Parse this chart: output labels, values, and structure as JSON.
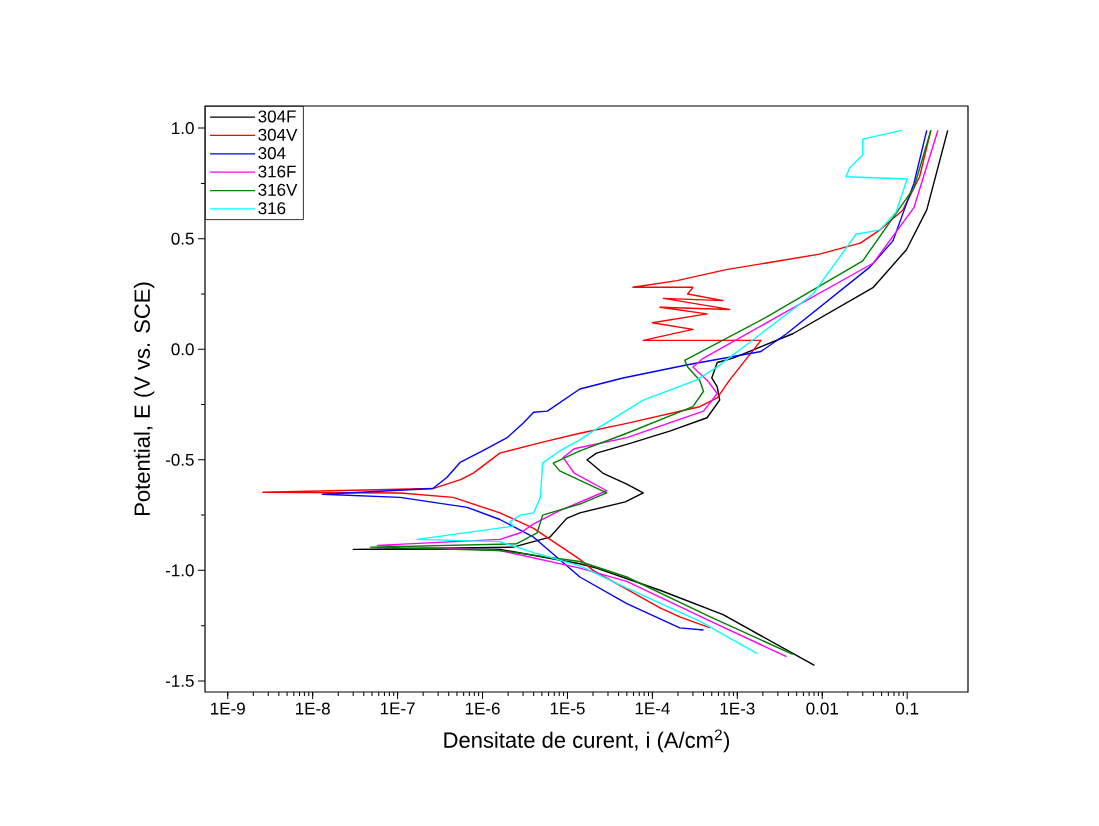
{
  "chart_data": {
    "type": "line",
    "xlabel": "Densitate de curent, i (A/cm$^{2}$)",
    "ylabel": "Potential, E (V vs. SCE)",
    "log": "x",
    "legend": "top left",
    "marker": "none",
    "xlim": [
      5.4e-10,
      0.52
    ],
    "ylim": [
      -1.55,
      1.1
    ],
    "xticks": [
      {
        "value": 1e-09,
        "label": "1E-9"
      },
      {
        "value": 1e-08,
        "label": "1E-8"
      },
      {
        "value": 1e-07,
        "label": "1E-7"
      },
      {
        "value": 1e-06,
        "label": "1E-6"
      },
      {
        "value": 1e-05,
        "label": "1E-5"
      },
      {
        "value": 0.0001,
        "label": "1E-4"
      },
      {
        "value": 0.001,
        "label": "1E-3"
      },
      {
        "value": 0.01,
        "label": "0.01"
      },
      {
        "value": 0.1,
        "label": "0.1"
      }
    ],
    "yticks": [
      {
        "value": -1.5,
        "label": "-1.5"
      },
      {
        "value": -1.0,
        "label": "-1.0"
      },
      {
        "value": -0.5,
        "label": "-0.5"
      },
      {
        "value": 0.0,
        "label": "0.0"
      },
      {
        "value": 0.5,
        "label": "0.5"
      },
      {
        "value": 1.0,
        "label": "1.0"
      }
    ],
    "series": [
      {
        "name": "304F",
        "color": "#000000",
        "x": [
          0.0081,
          0.00068,
          0.000123,
          2.2e-05,
          1.4e-05,
          1.6e-06,
          3e-08,
          2.3e-06,
          6.2e-06,
          9.8e-06,
          1.4e-05,
          4.8e-05,
          7.8e-05,
          5e-05,
          2.6e-05,
          1.7e-05,
          2.2e-05,
          5e-05,
          0.00016,
          0.00044,
          0.00062,
          0.00058,
          0.0005,
          0.00058,
          0.00089,
          0.0045,
          0.04,
          0.098,
          0.17,
          0.3
        ],
        "values": [
          -1.43,
          -1.2,
          -1.09,
          -0.99,
          -0.97,
          -0.905,
          -0.905,
          -0.895,
          -0.85,
          -0.765,
          -0.74,
          -0.69,
          -0.65,
          -0.61,
          -0.56,
          -0.5,
          -0.47,
          -0.43,
          -0.37,
          -0.31,
          -0.23,
          -0.17,
          -0.13,
          -0.06,
          -0.04,
          0.07,
          0.28,
          0.45,
          0.63,
          0.99
        ]
      },
      {
        "name": "304V",
        "color": "#ff0000",
        "x": [
          0.00048,
          0.00021,
          0.000123,
          2e-05,
          1.4e-05,
          4e-06,
          1.6e-06,
          4.5e-07,
          1.07e-07,
          2.6e-09,
          2.6e-07,
          5.5e-07,
          7.8e-07,
          1.6e-06,
          5.1e-06,
          1.4e-05,
          5e-05,
          0.00036,
          0.00058,
          0.00081,
          0.0019,
          7.8e-05,
          0.0003,
          0.0001,
          0.00044,
          0.000123,
          0.00081,
          0.000135,
          0.00068,
          0.00026,
          0.0003,
          5.9e-05,
          0.000195,
          0.00074,
          0.0022,
          0.0093,
          0.028,
          0.048,
          0.089,
          0.14,
          0.19
        ],
        "values": [
          -1.26,
          -1.21,
          -1.17,
          -1.0,
          -0.95,
          -0.81,
          -0.74,
          -0.67,
          -0.65,
          -0.647,
          -0.63,
          -0.59,
          -0.56,
          -0.47,
          -0.42,
          -0.38,
          -0.335,
          -0.26,
          -0.22,
          -0.14,
          0.04,
          0.04,
          0.09,
          0.12,
          0.16,
          0.19,
          0.18,
          0.23,
          0.22,
          0.25,
          0.28,
          0.28,
          0.31,
          0.36,
          0.39,
          0.43,
          0.48,
          0.54,
          0.63,
          0.78,
          0.99
        ]
      },
      {
        "name": "304",
        "color": "#0000ff",
        "x": [
          0.0004,
          0.00021,
          5e-05,
          1.4e-05,
          4e-06,
          1.6e-06,
          6.6e-07,
          1.07e-07,
          1.3e-08,
          2.6e-07,
          3.8e-07,
          5.5e-07,
          1e-06,
          1.95e-06,
          3e-06,
          4e-06,
          5.8e-06,
          1.4e-05,
          4.5e-05,
          0.00026,
          0.0019,
          0.0038,
          0.036,
          0.068,
          0.12,
          0.17
        ],
        "values": [
          -1.27,
          -1.26,
          -1.15,
          -1.03,
          -0.85,
          -0.77,
          -0.715,
          -0.67,
          -0.656,
          -0.63,
          -0.58,
          -0.51,
          -0.46,
          -0.4,
          -0.335,
          -0.285,
          -0.28,
          -0.18,
          -0.13,
          -0.07,
          -0.01,
          0.07,
          0.37,
          0.49,
          0.75,
          0.99
        ]
      },
      {
        "name": "316F",
        "color": "#ff00ff",
        "x": [
          0.0038,
          0.00048,
          5e-05,
          1.4e-05,
          1.6e-06,
          5.8e-08,
          1.6e-06,
          2.8e-06,
          4e-06,
          8.1e-06,
          2.9e-05,
          1.2e-05,
          8.9e-06,
          1.2e-05,
          5e-05,
          0.0004,
          0.00058,
          0.00044,
          0.0003,
          0.0004,
          0.0029,
          0.04,
          0.12,
          0.23
        ],
        "values": [
          -1.39,
          -1.23,
          -1.05,
          -0.99,
          -0.91,
          -0.887,
          -0.86,
          -0.83,
          -0.79,
          -0.73,
          -0.64,
          -0.56,
          -0.49,
          -0.45,
          -0.4,
          -0.28,
          -0.2,
          -0.14,
          -0.08,
          -0.04,
          0.145,
          0.39,
          0.64,
          0.99
        ]
      },
      {
        "name": "316V",
        "color": "#008000",
        "x": [
          0.0045,
          0.00048,
          5e-05,
          1.4e-05,
          1.6e-06,
          4.8e-08,
          2.5e-06,
          4.4e-06,
          5.1e-06,
          1.4e-05,
          2.9e-05,
          8.1e-06,
          6.8e-06,
          1.4e-05,
          5e-05,
          0.0003,
          0.0004,
          0.00036,
          0.00026,
          0.00024,
          0.0022,
          0.03,
          0.12,
          0.19
        ],
        "values": [
          -1.38,
          -1.21,
          -1.03,
          -0.96,
          -0.91,
          -0.895,
          -0.88,
          -0.83,
          -0.75,
          -0.7,
          -0.65,
          -0.55,
          -0.515,
          -0.46,
          -0.38,
          -0.26,
          -0.19,
          -0.14,
          -0.08,
          -0.05,
          0.145,
          0.4,
          0.73,
          0.99
        ]
      },
      {
        "name": "316",
        "color": "#00ffff",
        "x": [
          0.0017,
          0.00036,
          5e-05,
          1.4e-05,
          4e-06,
          1.6e-06,
          1.7e-07,
          2.3e-06,
          2.1e-06,
          2.8e-06,
          4e-06,
          4.8e-06,
          5.1e-06,
          8.1e-06,
          1.4e-05,
          2e-05,
          7.8e-05,
          0.00033,
          0.00058,
          0.0019,
          0.0078,
          0.025,
          0.048,
          0.074,
          0.1,
          0.019,
          0.021,
          0.03,
          0.03,
          0.087
        ],
        "values": [
          -1.375,
          -1.23,
          -1.08,
          -0.98,
          -0.92,
          -0.87,
          -0.86,
          -0.8,
          -0.78,
          -0.75,
          -0.74,
          -0.67,
          -0.515,
          -0.46,
          -0.41,
          -0.37,
          -0.23,
          -0.14,
          -0.08,
          0.07,
          0.25,
          0.52,
          0.54,
          0.62,
          0.77,
          0.78,
          0.82,
          0.88,
          0.95,
          0.99
        ]
      }
    ]
  }
}
